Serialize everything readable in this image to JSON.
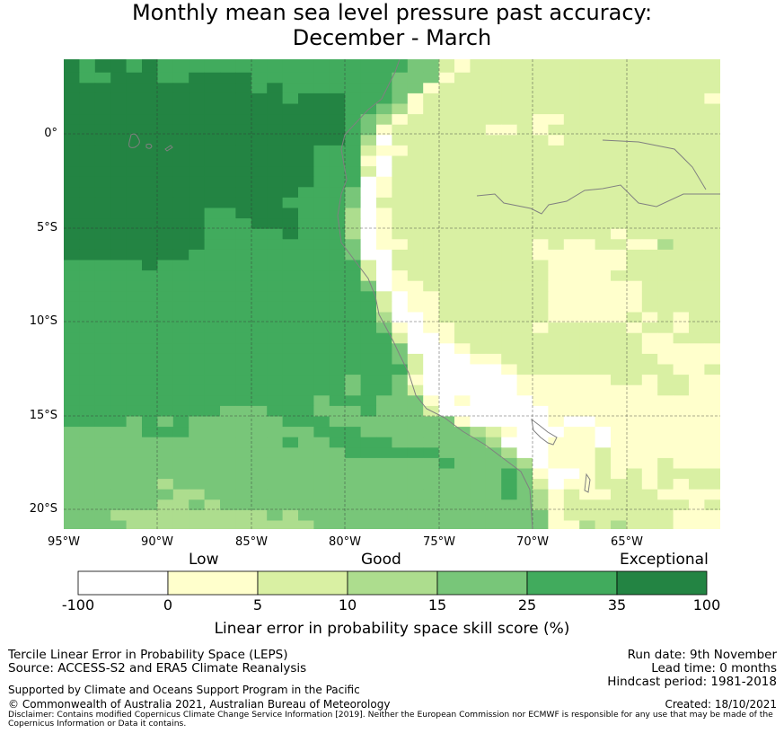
{
  "title": {
    "line1": "Monthly mean sea level pressure past accuracy:",
    "line2": "December - March"
  },
  "map": {
    "lat_labels": [
      "0°",
      "5°S",
      "10°S",
      "15°S",
      "20°S"
    ],
    "lon_labels": [
      "95°W",
      "90°W",
      "85°W",
      "80°W",
      "75°W",
      "70°W",
      "65°W"
    ],
    "lon_range": [
      -95,
      -60
    ],
    "lat_range": [
      -21,
      4
    ],
    "category_colors": [
      "#ffffff",
      "#ffffcc",
      "#d9f0a3",
      "#addd8e",
      "#78c679",
      "#41ab5d",
      "#238443"
    ],
    "grid_rows": [
      "656656555555555555555544212222222222222222",
      "655666556666555555555444122222222222222222",
      "666666666666565555555441222222222222222222",
      "666666666666665666555412222222222222222221",
      "666666666666666666554312222222222222222222",
      "666666666666666666543122222222112222222222",
      "666666666666666666541222222112122222222222",
      "666666666666666666530222222222212222222222",
      "666666666666666655521122222222222222222222",
      "666666666666666655510222222222222222222222",
      "666666666666666655520222222222222222222222",
      "666666666666666655501222222222222222222222",
      "666666666666666555401222222222222222222222",
      "666666666666665555402222222222222222222222",
      "666666666556666555301222222222222222222222",
      "666666666555666555301222222222222222222222",
      "666666666555556555301222222222222221222222",
      "666666666555555555401122222222121122113222",
      "666666665555555555400222222222111111222222",
      "555556555555555555520222222222211111222222",
      "555555555555555555520122222222211112222222",
      "555555555555555555540112222222211111122222",
      "555555555555555555552011222222211111122222",
      "555555555555555555552011222222211111122222",
      "555555555555555555553001222222211111212122",
      "555555555555555555554101122222122222122122",
      "555555555555555555555200122222222222211222",
      "555555555555555555555400012222222222211111",
      "555555555555555555555420001122222222221111",
      "555555555555555555555520000012222222222112",
      "555555555555555555455410000001111112212211",
      "555555555555555555455420000001111111112211",
      "555555555555555545554441010000111111111111",
      "555555555544455544454442000000011111111111",
      "555545454444445554444444410000010011111111",
      "444445554444444455544444443210001101111111",
      "444444444444445445555444444300011101111111",
      "444444444444444444555555444430011121111111",
      "444444444444444444444444544443011121112111",
      "444444444444444444444444444454100121212222",
      "444444344444444444444444444454201122212122",
      "444444433444444444444444444454312112221111",
      "444444334344444444444444444444312222222212",
      "444333333333343444444444444444412222222111",
      "444433333333333344444444444444411323222111"
    ]
  },
  "colorbar": {
    "categories": [
      "Low",
      "Good",
      "Exceptional"
    ],
    "ticks": [
      "-100",
      "0",
      "5",
      "10",
      "15",
      "25",
      "35",
      "100"
    ],
    "label": "Linear error in probability space skill score (%)"
  },
  "footer": {
    "left1": "Tercile Linear Error in Probability Space (LEPS)",
    "left2": "Source: ACCESS-S2 and ERA5 Climate Reanalysis",
    "support": "Supported by Climate and Oceans Support Program in the Pacific",
    "copyright": "© Commonwealth of Australia 2021, Australian Bureau of Meteorology",
    "disclaimer1": "Disclaimer: Contains modified Copernicus Climate Change Service Information [2019]. Neither the European Commission nor ECMWF is responsible for any use that may be made of the",
    "disclaimer2": "Copernicus Information or Data it contains.",
    "run_date": "Run date: 9th November",
    "lead_time": "Lead time: 0 months",
    "hindcast": "Hindcast period: 1981-2018",
    "created": "Created: 18/10/2021"
  }
}
